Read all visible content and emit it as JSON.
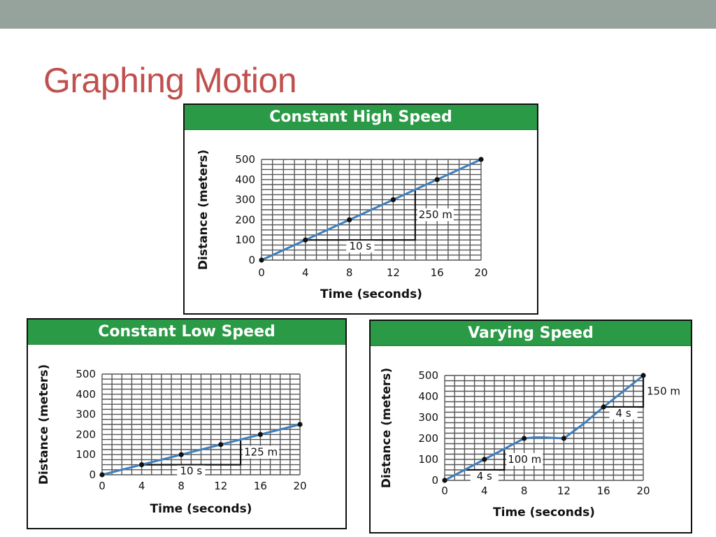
{
  "slide": {
    "title": "Graphing Motion",
    "accent_color": "#c0504d",
    "top_bar_color": "#95a39c",
    "header_color": "#2a9a46"
  },
  "chart_data": [
    {
      "type": "line",
      "title": "Constant High Speed",
      "xlabel": "Time (seconds)",
      "ylabel": "Distance (meters)",
      "xlim": [
        0,
        20
      ],
      "ylim": [
        0,
        500
      ],
      "x_ticks": [
        0,
        4,
        8,
        12,
        16,
        20
      ],
      "y_ticks": [
        0,
        100,
        200,
        300,
        400,
        500
      ],
      "grid": true,
      "series": [
        {
          "x": [
            0,
            4,
            8,
            12,
            16,
            20
          ],
          "y": [
            0,
            100,
            200,
            300,
            400,
            500
          ],
          "markers": [
            0,
            4,
            8,
            12,
            16,
            20
          ]
        }
      ],
      "slope_triangle": {
        "from": [
          4,
          100
        ],
        "to": [
          14,
          350
        ],
        "run_label": "10 s",
        "rise_label": "250 m"
      }
    },
    {
      "type": "line",
      "title": "Constant Low Speed",
      "xlabel": "Time (seconds)",
      "ylabel": "Distance (meters)",
      "xlim": [
        0,
        20
      ],
      "ylim": [
        0,
        500
      ],
      "x_ticks": [
        0,
        4,
        8,
        12,
        16,
        20
      ],
      "y_ticks": [
        0,
        100,
        200,
        300,
        400,
        500
      ],
      "grid": true,
      "series": [
        {
          "x": [
            0,
            4,
            8,
            12,
            16,
            20
          ],
          "y": [
            0,
            50,
            100,
            150,
            200,
            250
          ],
          "markers": [
            0,
            4,
            8,
            12,
            16,
            20
          ]
        }
      ],
      "slope_triangle": {
        "from": [
          4,
          50
        ],
        "to": [
          14,
          175
        ],
        "run_label": "10 s",
        "rise_label": "125 m"
      }
    },
    {
      "type": "line",
      "title": "Varying Speed",
      "xlabel": "Time (seconds)",
      "ylabel": "Distance (meters)",
      "xlim": [
        0,
        20
      ],
      "ylim": [
        0,
        500
      ],
      "x_ticks": [
        0,
        4,
        8,
        12,
        16,
        20
      ],
      "y_ticks": [
        0,
        100,
        200,
        300,
        400,
        500
      ],
      "grid": true,
      "series": [
        {
          "x": [
            0,
            4,
            8,
            9,
            10,
            12,
            14,
            16,
            20
          ],
          "y": [
            0,
            100,
            200,
            205,
            205,
            200,
            270,
            350,
            500
          ],
          "markers": [
            0,
            4,
            8,
            12,
            16,
            20
          ]
        }
      ],
      "slope_triangles": [
        {
          "from": [
            2,
            50
          ],
          "to": [
            6,
            150
          ],
          "run_label": "4 s",
          "rise_label": "100 m"
        },
        {
          "from": [
            16,
            350
          ],
          "to": [
            20,
            500
          ],
          "run_label": "4 s",
          "rise_label": "150 m"
        }
      ]
    }
  ]
}
